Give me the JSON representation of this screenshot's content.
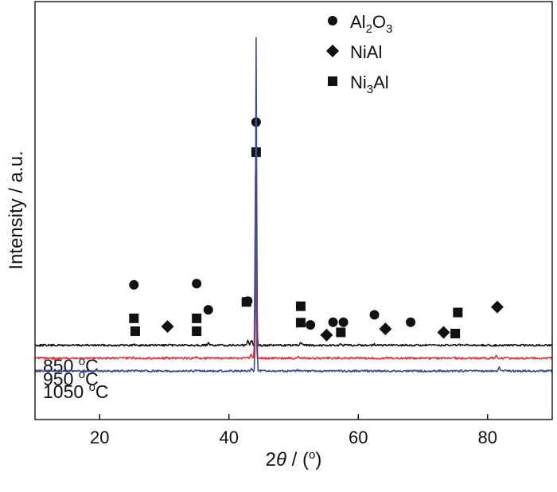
{
  "chart_data": {
    "type": "line",
    "xlabel": {
      "prefix": "2",
      "symbol": "θ",
      "suffix": " / (",
      "unit_sup": "o",
      "close": ")"
    },
    "ylabel": "Intensity / a.u.",
    "xlim": [
      10,
      90
    ],
    "xticks": [
      20,
      40,
      60,
      80
    ],
    "yticks_shown": false,
    "grid": false,
    "legend_position": "top-right",
    "legend": [
      {
        "marker": "circle",
        "parts": [
          [
            "Al",
            ""
          ],
          [
            "2",
            "sub"
          ],
          [
            "O",
            ""
          ],
          [
            "3",
            "sub"
          ]
        ]
      },
      {
        "marker": "diamond",
        "parts": [
          [
            "NiAl",
            ""
          ]
        ]
      },
      {
        "marker": "square",
        "parts": [
          [
            "Ni",
            ""
          ],
          [
            "3",
            "sub"
          ],
          [
            "Al",
            ""
          ]
        ]
      }
    ],
    "series": [
      {
        "label_number": "850 ",
        "label_sup": "o",
        "label_unit": "C",
        "color": "#111111",
        "baseline": 0.66,
        "peaks": [
          [
            25.3,
            0.02
          ],
          [
            35.0,
            0.02
          ],
          [
            36.8,
            0.05
          ],
          [
            42.9,
            0.11
          ],
          [
            43.5,
            0.14
          ],
          [
            44.2,
            4.26
          ],
          [
            51.1,
            0.05
          ],
          [
            57.3,
            0.02
          ],
          [
            62.5,
            0.02
          ],
          [
            75.5,
            0.02
          ]
        ],
        "markers": [
          {
            "shape": "circle",
            "x": 25.3,
            "h": 1.55
          },
          {
            "shape": "square",
            "x": 25.3,
            "h": 0.69
          },
          {
            "shape": "circle",
            "x": 35.0,
            "h": 1.58
          },
          {
            "shape": "square",
            "x": 35.0,
            "h": 0.69
          },
          {
            "shape": "circle",
            "x": 36.8,
            "h": 0.91
          },
          {
            "shape": "circle",
            "x": 42.9,
            "h": 1.13
          },
          {
            "shape": "circle",
            "x": 44.2,
            "h": 5.72
          },
          {
            "shape": "square",
            "x": 44.2,
            "h": 4.95
          },
          {
            "shape": "square",
            "x": 51.1,
            "h": 1.0
          },
          {
            "shape": "circle",
            "x": 52.6,
            "h": 0.52
          },
          {
            "shape": "circle",
            "x": 56.1,
            "h": 0.59
          },
          {
            "shape": "circle",
            "x": 57.7,
            "h": 0.59
          },
          {
            "shape": "circle",
            "x": 62.5,
            "h": 0.78
          },
          {
            "shape": "circle",
            "x": 68.1,
            "h": 0.59
          },
          {
            "shape": "square",
            "x": 75.4,
            "h": 0.84
          }
        ]
      },
      {
        "label_number": "950 ",
        "label_sup": "o",
        "label_unit": "C",
        "color": "#e8323a",
        "baseline": 0.33,
        "peaks": [
          [
            25.2,
            0.02
          ],
          [
            30.3,
            0.01
          ],
          [
            35.0,
            0.02
          ],
          [
            43.4,
            0.08
          ],
          [
            44.1,
            4.75
          ],
          [
            50.7,
            0.04
          ],
          [
            57.1,
            0.02
          ],
          [
            64.5,
            0.01
          ],
          [
            74.8,
            0.02
          ],
          [
            81.3,
            0.06
          ]
        ],
        "markers": [
          {
            "shape": "square",
            "x": 25.5,
            "h": 0.69
          },
          {
            "shape": "diamond",
            "x": 30.5,
            "h": 0.81
          },
          {
            "shape": "square",
            "x": 35.0,
            "h": 0.69
          },
          {
            "shape": "square",
            "x": 42.7,
            "h": 1.44
          },
          {
            "shape": "square",
            "x": 51.1,
            "h": 0.91
          },
          {
            "shape": "diamond",
            "x": 55.1,
            "h": 0.59
          },
          {
            "shape": "square",
            "x": 57.3,
            "h": 0.66
          },
          {
            "shape": "diamond",
            "x": 64.2,
            "h": 0.75
          },
          {
            "shape": "diamond",
            "x": 73.2,
            "h": 0.66
          },
          {
            "shape": "square",
            "x": 75.0,
            "h": 0.63
          },
          {
            "shape": "diamond",
            "x": 81.5,
            "h": 1.31
          }
        ]
      },
      {
        "label_number": "1050 ",
        "label_sup": "o",
        "label_unit": "C",
        "color": "#3b4a9e",
        "baseline": 0.0,
        "peaks": [
          [
            43.5,
            0.05
          ],
          [
            44.2,
            8.57
          ],
          [
            50.6,
            0.02
          ],
          [
            81.8,
            0.09
          ]
        ],
        "markers": []
      }
    ]
  }
}
